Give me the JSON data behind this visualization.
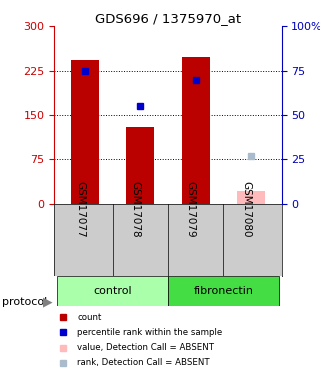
{
  "title": "GDS696 / 1375970_at",
  "samples": [
    "GSM17077",
    "GSM17078",
    "GSM17079",
    "GSM17080"
  ],
  "bar_values": [
    243,
    130,
    248,
    0
  ],
  "bar_color": "#bb0000",
  "absent_bar_value": 22,
  "absent_bar_color": "#ffbbbb",
  "rank_values": [
    75,
    55,
    70,
    null
  ],
  "rank_absent_value": 27,
  "rank_color": "#0000cc",
  "rank_absent_color": "#aabbcc",
  "ylim_left": [
    0,
    300
  ],
  "ylim_right": [
    0,
    100
  ],
  "yticks_left": [
    0,
    75,
    150,
    225,
    300
  ],
  "yticks_right": [
    0,
    25,
    50,
    75,
    100
  ],
  "ytick_labels_right": [
    "0",
    "25",
    "50",
    "75",
    "100%"
  ],
  "dotted_lines": [
    75,
    150,
    225
  ],
  "protocols": [
    "control",
    "control",
    "fibronectin",
    "fibronectin"
  ],
  "control_color": "#aaffaa",
  "fibronectin_color": "#44dd44",
  "protocol_label": "protocol",
  "legend": [
    {
      "label": "count",
      "color": "#bb0000"
    },
    {
      "label": "percentile rank within the sample",
      "color": "#0000cc"
    },
    {
      "label": "value, Detection Call = ABSENT",
      "color": "#ffbbbb"
    },
    {
      "label": "rank, Detection Call = ABSENT",
      "color": "#aabbcc"
    }
  ],
  "bar_width": 0.5,
  "background_color": "#ffffff",
  "label_bg": "#cccccc",
  "left_axis_color": "#cc0000",
  "right_axis_color": "#0000bb"
}
